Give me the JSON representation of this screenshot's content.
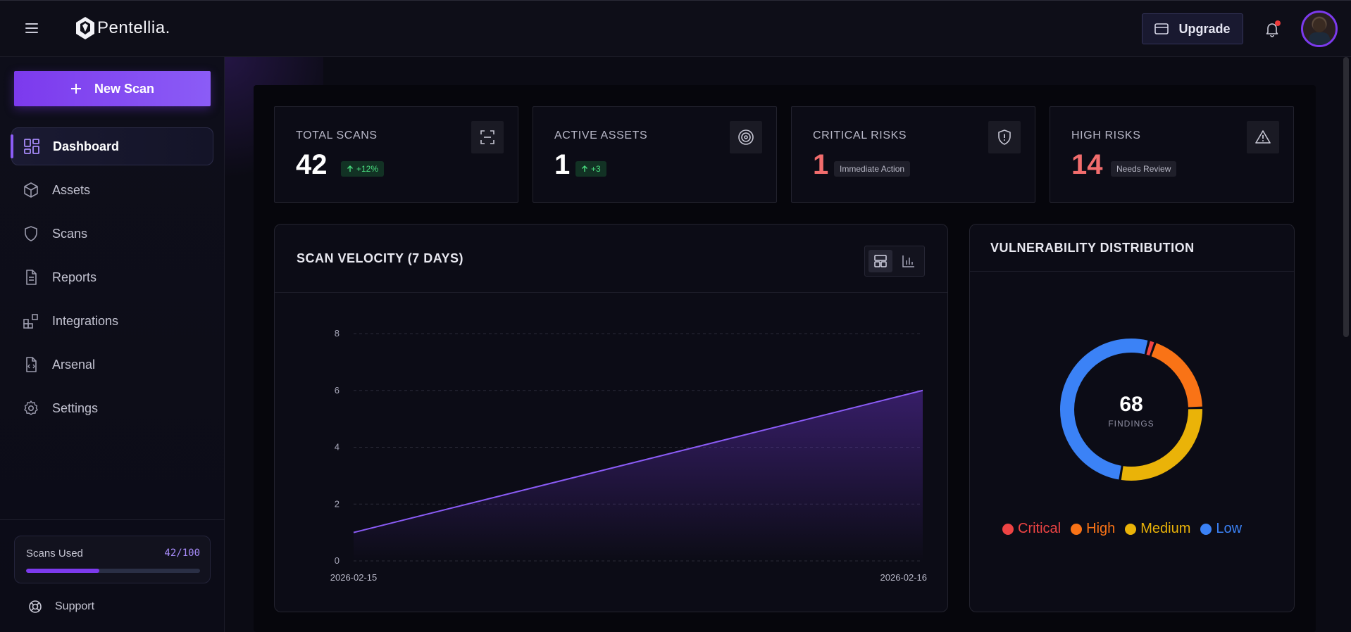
{
  "app": {
    "name": "Pentellia.",
    "upgrade_label": "Upgrade"
  },
  "sidebar": {
    "new_scan_label": "New Scan",
    "items": [
      {
        "label": "Dashboard",
        "icon": "dashboard-grid-icon",
        "active": true
      },
      {
        "label": "Assets",
        "icon": "box-icon",
        "active": false
      },
      {
        "label": "Scans",
        "icon": "shield-icon",
        "active": false
      },
      {
        "label": "Reports",
        "icon": "document-icon",
        "active": false
      },
      {
        "label": "Integrations",
        "icon": "integrations-icon",
        "active": false
      },
      {
        "label": "Arsenal",
        "icon": "code-file-icon",
        "active": false
      },
      {
        "label": "Settings",
        "icon": "gear-icon",
        "active": false
      }
    ],
    "usage": {
      "label": "Scans Used",
      "count": "42/100",
      "fraction": 0.42
    },
    "support_label": "Support"
  },
  "stats": [
    {
      "title": "TOTAL SCANS",
      "value": "42",
      "badge": "+12%",
      "badge_style": "green",
      "icon": "scan-frame-icon"
    },
    {
      "title": "ACTIVE ASSETS",
      "value": "1",
      "badge": "+3",
      "badge_style": "green",
      "icon": "target-icon"
    },
    {
      "title": "CRITICAL RISKS",
      "value": "1",
      "badge": "Immediate Action",
      "badge_style": "gray",
      "icon": "shield-alert-icon"
    },
    {
      "title": "HIGH RISKS",
      "value": "14",
      "badge": "Needs Review",
      "badge_style": "gray",
      "icon": "warning-triangle-icon"
    }
  ],
  "velocity": {
    "title": "SCAN VELOCITY (7 DAYS)"
  },
  "distribution": {
    "title": "VULNERABILITY DISTRIBUTION",
    "total": "68",
    "total_label": "FINDINGS"
  },
  "colors": {
    "accent": "#7c3aed",
    "critical": "#ef4444",
    "high": "#f97316",
    "medium": "#eab308",
    "low": "#3b82f6"
  },
  "chart_data": [
    {
      "type": "area",
      "x": [
        "2026-02-15",
        "2026-02-16"
      ],
      "y": [
        1,
        6
      ],
      "ylim": [
        0,
        8
      ],
      "yticks": [
        0,
        2,
        4,
        6,
        8
      ],
      "grid": true
    },
    {
      "type": "pie",
      "donut": true,
      "categories": [
        "Critical",
        "High",
        "Medium",
        "Low"
      ],
      "values": [
        1,
        13,
        19,
        35
      ],
      "colors": [
        "#ef4444",
        "#f97316",
        "#eab308",
        "#3b82f6"
      ],
      "legend": "bottom"
    }
  ]
}
